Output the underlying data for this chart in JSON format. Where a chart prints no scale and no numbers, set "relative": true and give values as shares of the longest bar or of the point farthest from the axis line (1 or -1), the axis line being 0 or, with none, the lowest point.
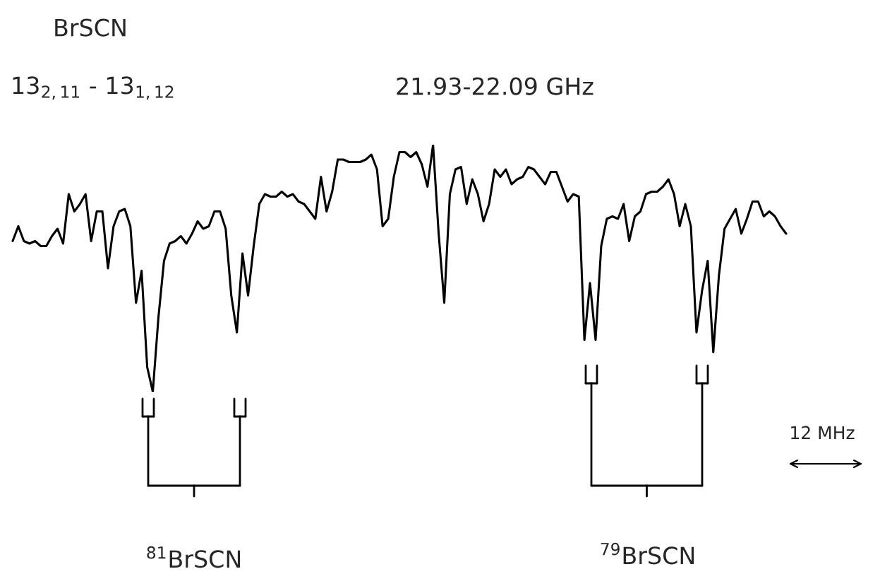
{
  "chart_data": {
    "type": "line",
    "title": "BrSCN",
    "subtitle": "13$_{2,11}$ - 13$_{1,12}$",
    "annotations": [
      "21.93-22.09 GHz",
      "12 MHz",
      "$^{81}$BrSCN",
      "$^{79}$BrSCN"
    ],
    "relative": true,
    "color": "#000000",
    "line_style": "solid",
    "categories": [
      null,
      null,
      null,
      null,
      null,
      null,
      null,
      null,
      null,
      null,
      null,
      null,
      null,
      null,
      null,
      null,
      null,
      null,
      null,
      null,
      null,
      null,
      null,
      null,
      null,
      null,
      null,
      null,
      null,
      null,
      null,
      null,
      null,
      null,
      null,
      null,
      null,
      null,
      null,
      null,
      null,
      null,
      null,
      null,
      null,
      null,
      null,
      null,
      null,
      null,
      null,
      null,
      null,
      null,
      null,
      null,
      null,
      null,
      null,
      null,
      null,
      null,
      null,
      null,
      null,
      null,
      null,
      null,
      null,
      null,
      null,
      null,
      null,
      null,
      null,
      null,
      null,
      null,
      null,
      null,
      null,
      null,
      null,
      null,
      null,
      null,
      null,
      null,
      null,
      null,
      null,
      null,
      null,
      null,
      null,
      null,
      null,
      null,
      null,
      null,
      null,
      null,
      null,
      null,
      null,
      null,
      null,
      null,
      null,
      null,
      null,
      null,
      null,
      null,
      null,
      null,
      null,
      null,
      null,
      null,
      null,
      null,
      null,
      null,
      null,
      null,
      null,
      null,
      null,
      null,
      null,
      null,
      null,
      null,
      null,
      null,
      null,
      null,
      null
    ],
    "values": [
      0.61,
      0.67,
      0.61,
      0.6,
      0.61,
      0.59,
      0.59,
      0.63,
      0.66,
      0.6,
      0.8,
      0.73,
      0.76,
      0.8,
      0.61,
      0.73,
      0.73,
      0.5,
      0.67,
      0.73,
      0.74,
      0.67,
      0.36,
      0.49,
      0.1,
      0,
      0.3,
      0.53,
      0.6,
      0.61,
      0.63,
      0.6,
      0.64,
      0.69,
      0.66,
      0.67,
      0.73,
      0.73,
      0.66,
      0.39,
      0.24,
      0.56,
      0.39,
      0.59,
      0.76,
      0.8,
      0.79,
      0.79,
      0.81,
      0.79,
      0.8,
      0.77,
      0.76,
      0.73,
      0.7,
      0.87,
      0.73,
      0.81,
      0.94,
      0.94,
      0.93,
      0.93,
      0.93,
      0.94,
      0.96,
      0.9,
      0.67,
      0.7,
      0.87,
      0.97,
      0.97,
      0.95,
      0.97,
      0.92,
      0.83,
      1,
      0.64,
      0.36,
      0.8,
      0.9,
      0.91,
      0.76,
      0.86,
      0.8,
      0.69,
      0.76,
      0.9,
      0.87,
      0.9,
      0.84,
      0.86,
      0.87,
      0.91,
      0.9,
      0.87,
      0.84,
      0.89,
      0.89,
      0.83,
      0.77,
      0.8,
      0.79,
      0.21,
      0.44,
      0.21,
      0.59,
      0.7,
      0.71,
      0.7,
      0.76,
      0.61,
      0.71,
      0.73,
      0.8,
      0.81,
      0.81,
      0.83,
      0.86,
      0.8,
      0.67,
      0.76,
      0.67,
      0.24,
      0.41,
      0.53,
      0.16,
      0.47,
      0.66,
      0.7,
      0.74,
      0.64,
      0.7,
      0.77,
      0.77,
      0.71,
      0.73,
      0.71,
      0.67,
      0.64
    ]
  }
}
